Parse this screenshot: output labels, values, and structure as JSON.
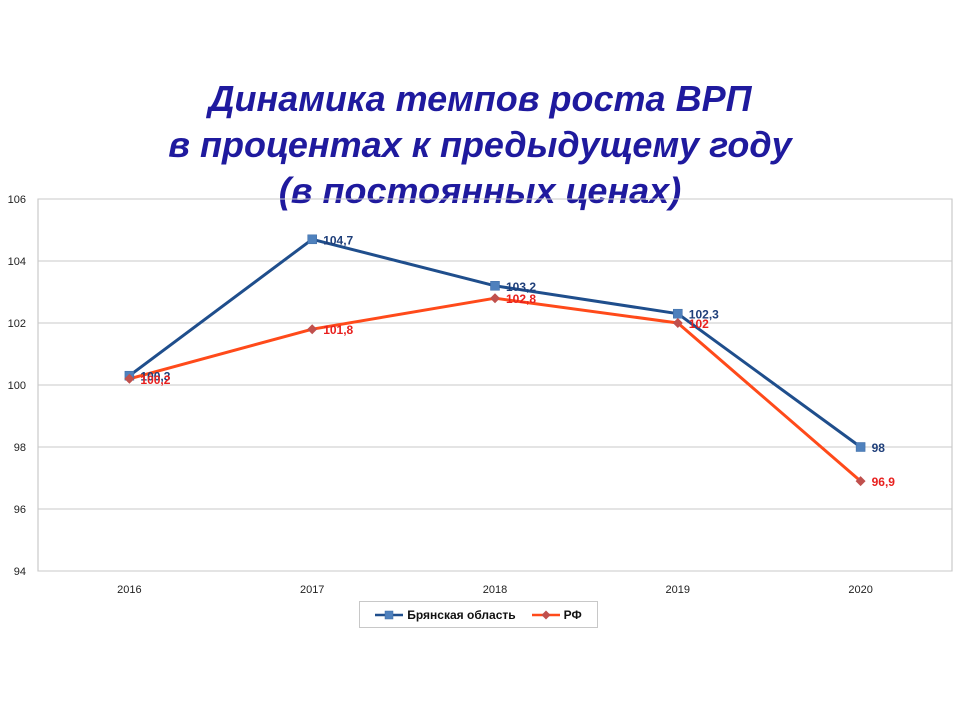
{
  "title_lines": [
    "Динамика темпов роста ВРП",
    "в процентах к предыдущему году",
    "(в постоянных ценах)"
  ],
  "colors": {
    "series1": "#1f4e8c",
    "series2": "#ff4a1a",
    "label1": "#1f3f7a",
    "label2": "#e8201e",
    "title": "#1f1a9e"
  },
  "chart_data": {
    "type": "line",
    "categories": [
      "2016",
      "2017",
      "2018",
      "2019",
      "2020"
    ],
    "ylim": [
      94,
      106
    ],
    "yticks": [
      94,
      96,
      98,
      100,
      102,
      104,
      106
    ],
    "grid": true,
    "legend_position": "bottom",
    "series": [
      {
        "name": "Брянская область",
        "values": [
          100.3,
          104.7,
          103.2,
          102.3,
          98
        ],
        "labels": [
          "100,3",
          "104,7",
          "103,2",
          "102,3",
          "98"
        ],
        "marker": "square"
      },
      {
        "name": "РФ",
        "values": [
          100.2,
          101.8,
          102.8,
          102,
          96.9
        ],
        "labels": [
          "100,2",
          "101,8",
          "102,8",
          "102",
          "96,9"
        ],
        "marker": "diamond"
      }
    ]
  }
}
